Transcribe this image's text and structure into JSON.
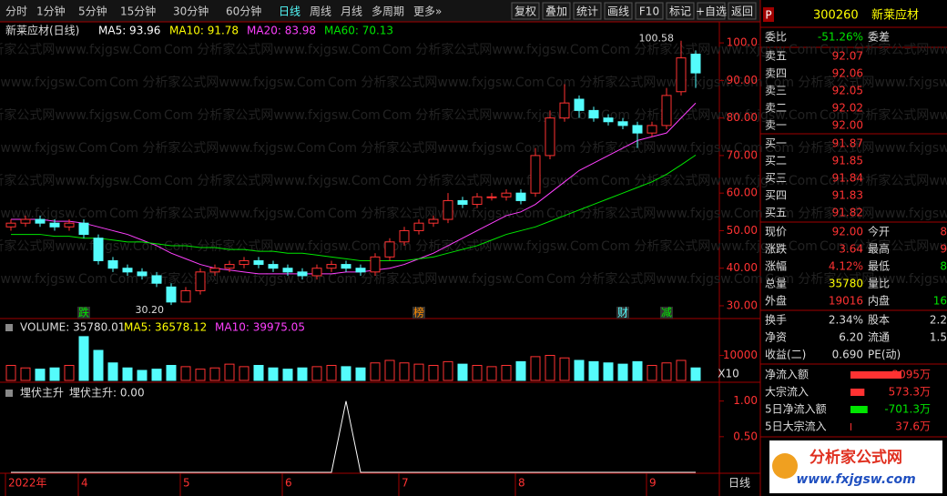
{
  "toolbar": {
    "periods": [
      "分时",
      "1分钟",
      "5分钟",
      "15分钟",
      "30分钟",
      "60分钟",
      "日线",
      "周线",
      "月线",
      "多周期",
      "更多»"
    ],
    "active": "日线",
    "tools": [
      "复权",
      "叠加",
      "统计",
      "画线",
      "F10",
      "标记",
      "+自选",
      "返回"
    ]
  },
  "chart": {
    "type": "candlestick",
    "title": "新莱应材(日线)",
    "watermark": "Com 分析家公式网www.fxjgsw.Com",
    "ma_labels": [
      {
        "text": "MA5: 93.96",
        "color": "#ffffff"
      },
      {
        "text": "MA10: 91.78",
        "color": "#ffff00"
      },
      {
        "text": "MA20: 83.98",
        "color": "#ff40ff"
      },
      {
        "text": "MA60: 70.13",
        "color": "#00e600"
      }
    ],
    "categories": [
      "2022年",
      null,
      null,
      null,
      null,
      "4",
      null,
      null,
      null,
      null,
      null,
      null,
      "5",
      null,
      null,
      null,
      null,
      null,
      null,
      "6",
      null,
      null,
      null,
      null,
      null,
      null,
      null,
      "7",
      null,
      null,
      null,
      null,
      null,
      null,
      null,
      "8",
      null,
      null,
      null,
      null,
      null,
      null,
      null,
      null,
      "9",
      null,
      null,
      null
    ],
    "open": [
      51,
      52,
      53,
      52,
      51,
      52,
      48,
      42,
      40,
      39,
      38,
      35,
      31,
      34,
      39,
      40,
      41,
      42,
      41,
      40,
      39,
      38,
      40,
      41,
      40,
      39,
      43,
      47,
      50,
      52,
      53,
      58,
      57,
      59,
      59,
      60,
      60,
      70,
      80,
      85,
      82,
      80,
      79,
      78,
      76,
      78,
      87,
      97
    ],
    "high": [
      53,
      54,
      54,
      53,
      53,
      53,
      49,
      43,
      41,
      40,
      39,
      36,
      35,
      40,
      41,
      42,
      43,
      43,
      42,
      41,
      40,
      41,
      42,
      42,
      41,
      44,
      48,
      51,
      53,
      54,
      60,
      59,
      60,
      60,
      61,
      61,
      72,
      82,
      89,
      86,
      83,
      81,
      80,
      79,
      79,
      88,
      100.58,
      98
    ],
    "low": [
      50,
      51,
      51,
      50,
      50,
      48,
      41,
      39,
      38,
      37,
      35,
      30.2,
      31,
      33,
      38,
      39,
      40,
      40,
      39,
      38,
      37,
      37,
      39,
      39,
      38,
      38,
      42,
      46,
      49,
      51,
      52,
      56,
      56,
      58,
      58,
      57,
      59,
      69,
      79,
      80,
      79,
      78,
      77,
      72,
      75,
      77,
      86,
      88
    ],
    "close": [
      52,
      53,
      52,
      51,
      52,
      49,
      42,
      40,
      39,
      38,
      36,
      31,
      34,
      39,
      40,
      41,
      42,
      41,
      40,
      39,
      38,
      40,
      41,
      40,
      39,
      43,
      47,
      50,
      52,
      53,
      58,
      57,
      59,
      59,
      60,
      58,
      70,
      80,
      84,
      82,
      80,
      79,
      78,
      76,
      78,
      86,
      96,
      92
    ],
    "ma_lines": [
      {
        "color": "#ff40ff",
        "values": [
          53,
          53,
          53,
          52.5,
          52.5,
          52,
          51,
          50,
          49,
          47.5,
          46,
          44,
          42.5,
          41,
          40,
          39.5,
          39,
          38.5,
          38.5,
          38.5,
          38.5,
          38.5,
          38.5,
          39,
          39,
          39.5,
          40,
          41,
          42.5,
          44,
          46,
          48,
          50,
          52,
          54,
          55,
          57,
          60,
          63,
          66,
          68,
          70,
          72,
          74,
          75,
          76,
          80,
          83.98
        ]
      },
      {
        "color": "#00e600",
        "values": [
          49,
          49,
          49,
          48.5,
          48.5,
          48,
          48,
          47.5,
          47,
          47,
          46.5,
          46,
          46,
          45.5,
          45.5,
          45,
          45,
          44.5,
          44.5,
          44,
          44,
          43.5,
          43,
          42.5,
          42,
          42,
          42,
          42,
          42.5,
          43,
          44,
          45,
          46,
          47.5,
          49,
          50,
          51,
          52.5,
          54,
          55.5,
          57,
          58.5,
          60,
          61.5,
          63,
          65,
          67.5,
          70.13
        ]
      }
    ],
    "annotations": [
      {
        "value": 100.58,
        "label": "100.58"
      },
      {
        "value": 30.2,
        "label": "30.20"
      }
    ],
    "events": [
      {
        "text": "跌",
        "color": "#00e600"
      },
      {
        "text": "榜",
        "color": "#ff8c00"
      },
      {
        "text": "财",
        "color": "#54fcfc"
      },
      {
        "text": "减",
        "color": "#00e600"
      }
    ],
    "ylim": [
      26.6,
      105.6
    ],
    "yticks": [
      {
        "value": 30,
        "label": "30.00"
      },
      {
        "value": 40,
        "label": "40.00"
      },
      {
        "value": 50,
        "label": "50.00"
      },
      {
        "value": 60,
        "label": "60.00"
      },
      {
        "value": 70,
        "label": "70.00"
      },
      {
        "value": 80,
        "label": "80.00"
      },
      {
        "value": 90,
        "label": "90.00"
      },
      {
        "value": 100,
        "label": "100.0"
      }
    ]
  },
  "volume": {
    "label": "VOLUME: 35780.01",
    "ma5": "MA5: 36578.12",
    "ma10": "MA10: 39975.05",
    "multiplier": "X10",
    "values": [
      6000,
      5000,
      4500,
      5000,
      6000,
      17500,
      12000,
      7000,
      5000,
      4000,
      4500,
      6000,
      5500,
      4500,
      5000,
      6500,
      5500,
      6000,
      5000,
      4500,
      5000,
      5500,
      6000,
      5500,
      5000,
      7000,
      8000,
      7000,
      6500,
      6000,
      7500,
      6500,
      6000,
      5500,
      6000,
      7500,
      9500,
      10000,
      9000,
      8000,
      7500,
      7000,
      6500,
      7500,
      6000,
      7000,
      8000,
      5000
    ],
    "ylim": [
      0,
      24000
    ],
    "yticks": [
      10000
    ]
  },
  "indicator": {
    "name": "埋伏主升",
    "value_label": "埋伏主升: 0.00",
    "values": [
      0,
      0,
      0,
      0,
      0,
      0,
      0,
      0,
      0,
      0,
      0,
      0,
      0,
      0,
      0,
      0,
      0,
      0,
      0,
      0,
      0,
      0,
      0,
      1,
      0,
      0,
      0,
      0,
      0,
      0,
      0,
      0,
      0,
      0,
      0,
      0,
      0,
      0,
      0,
      0,
      0,
      0,
      0,
      0,
      0,
      0,
      0,
      0
    ],
    "ylim": [
      0,
      1.2
    ],
    "yticks": [
      {
        "value": 1,
        "label": "1.00"
      },
      {
        "value": 0.5,
        "label": "0.50"
      }
    ]
  },
  "period": "日线",
  "quote": {
    "marker": "P",
    "code": "300260",
    "name": "新莱应材",
    "ratio_label": "委比",
    "ratio": "-51.26%",
    "diff_label": "委差",
    "sells": [
      [
        "卖五",
        "92.07"
      ],
      [
        "卖四",
        "92.06"
      ],
      [
        "卖三",
        "92.05"
      ],
      [
        "卖二",
        "92.02"
      ],
      [
        "卖一",
        "92.00"
      ]
    ],
    "buys": [
      [
        "买一",
        "91.87"
      ],
      [
        "买二",
        "91.85"
      ],
      [
        "买三",
        "91.84"
      ],
      [
        "买四",
        "91.83"
      ],
      [
        "买五",
        "91.82"
      ]
    ],
    "stats": [
      [
        "现价",
        "92.00",
        "今开",
        "8"
      ],
      [
        "涨跌",
        "3.64",
        "最高",
        "9"
      ],
      [
        "涨幅",
        "4.12%",
        "最低",
        "8"
      ],
      [
        "总量",
        "35780",
        "量比",
        ""
      ],
      [
        "外盘",
        "19016",
        "内盘",
        "16"
      ]
    ],
    "finance": [
      [
        "换手",
        "2.34%",
        "股本",
        "2.2"
      ],
      [
        "净资",
        "6.20",
        "流通",
        "1.5"
      ],
      [
        "收益(二)",
        "0.690",
        "PE(动)",
        ""
      ]
    ],
    "flows": [
      {
        "label": "净流入额",
        "value": 2095,
        "text": "2095万"
      },
      {
        "label": "大宗流入",
        "value": 573.3,
        "text": "573.3万"
      },
      {
        "label": "5日净流入额",
        "value": -701.3,
        "text": "-701.3万"
      },
      {
        "label": "5日大宗流入",
        "value": 37.6,
        "text": "37.6万"
      }
    ]
  },
  "logo": {
    "title": "分析家公式网",
    "url": "www.fxjgsw.com"
  }
}
